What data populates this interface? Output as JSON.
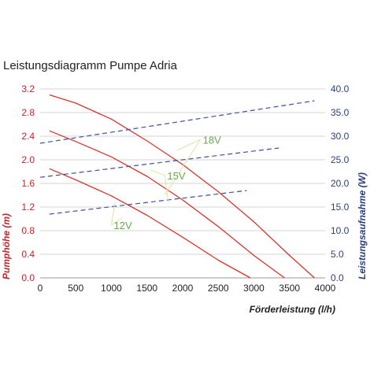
{
  "chart_data": {
    "type": "line",
    "title": "Leistungsdiagramm Pumpe Adria",
    "xlabel": "Förderleistung (l/h)",
    "ylabel_left": "Pumphöhe (m)",
    "ylabel_right": "Leistungsaufnahme (W)",
    "xlim": [
      0,
      4000
    ],
    "ylim_left": [
      0,
      3.2
    ],
    "ylim_right": [
      0,
      40
    ],
    "x_ticks": [
      "0",
      "500",
      "1000",
      "1500",
      "2000",
      "2500",
      "3000",
      "3500",
      "4000"
    ],
    "y_left_ticks": [
      "0.0",
      "0.4",
      "0.8",
      "1.2",
      "1.6",
      "2.0",
      "2.4",
      "2.8",
      "3.2"
    ],
    "y_right_ticks": [
      "0.0",
      "5.0",
      "10.0",
      "15.0",
      "20.0",
      "25.0",
      "30.0",
      "35.0",
      "40.0"
    ],
    "grid": "horizontal",
    "colors": {
      "head": "#d9332b",
      "power": "#3c4f9e",
      "annotation": "#6aa84f"
    },
    "series": [
      {
        "axis": "left",
        "style": "solid",
        "label": "18V",
        "x": [
          130,
          500,
          1000,
          1500,
          2000,
          2500,
          3000,
          3500,
          3850
        ],
        "y": [
          3.1,
          2.96,
          2.69,
          2.32,
          1.92,
          1.46,
          0.95,
          0.38,
          0.0
        ]
      },
      {
        "axis": "left",
        "style": "solid",
        "label": "15V",
        "x": [
          130,
          500,
          1000,
          1500,
          2000,
          2500,
          3000,
          3430
        ],
        "y": [
          2.49,
          2.31,
          2.05,
          1.72,
          1.32,
          0.87,
          0.38,
          0.0
        ]
      },
      {
        "axis": "left",
        "style": "solid",
        "label": "12V",
        "x": [
          130,
          500,
          1000,
          1500,
          2000,
          2500,
          2950
        ],
        "y": [
          1.85,
          1.66,
          1.39,
          1.06,
          0.69,
          0.3,
          0.0
        ]
      },
      {
        "axis": "right",
        "style": "dashed",
        "label": "18V",
        "x": [
          0,
          3850
        ],
        "y": [
          28.5,
          37.5
        ]
      },
      {
        "axis": "right",
        "style": "dashed",
        "label": "15V",
        "x": [
          0,
          3350
        ],
        "y": [
          21.3,
          27.5
        ]
      },
      {
        "axis": "right",
        "style": "dashed",
        "label": "12V",
        "x": [
          130,
          2900
        ],
        "y": [
          13.5,
          18.5
        ]
      }
    ],
    "annotations": [
      {
        "text": "18V",
        "arrow_to": [
          [
            1920,
            2.16
          ],
          [
            1750,
            1.41
          ]
        ],
        "label_pos": [
          2250,
          2.29
        ]
      },
      {
        "text": "15V",
        "arrow_to": [
          [
            1550,
            1.83
          ],
          [
            1800,
            1.27
          ]
        ],
        "label_pos": [
          1750,
          1.68
        ]
      },
      {
        "text": "12V",
        "arrow_to": [
          [
            1050,
            1.27
          ],
          [
            1150,
            1.02
          ]
        ],
        "label_pos": [
          1000,
          0.84
        ]
      }
    ]
  }
}
